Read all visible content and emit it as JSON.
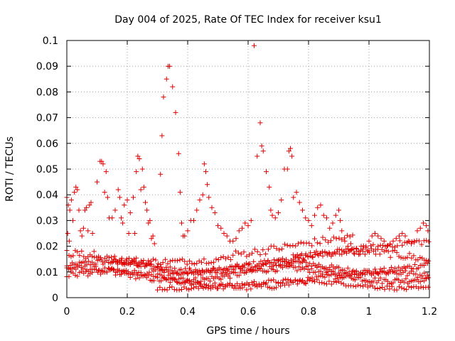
{
  "chart_data": {
    "type": "scatter",
    "title": "Day 004 of 2025, Rate Of TEC Index for receiver ksu1",
    "xlabel": "GPS time / hours",
    "ylabel": "ROTI / TECUs",
    "xlim": [
      0,
      1.2
    ],
    "ylim": [
      0,
      0.1
    ],
    "x_ticks": [
      "0",
      "0.2",
      "0.4",
      "0.6",
      "0.8",
      "1",
      "1.2"
    ],
    "y_ticks": [
      "0",
      "0.01",
      "0.02",
      "0.03",
      "0.04",
      "0.05",
      "0.06",
      "0.07",
      "0.08",
      "0.09",
      "0.1"
    ],
    "grid": true,
    "marker": "plus",
    "color": "#e00000",
    "series": [
      {
        "values": [
          [
            0.0,
            0.039
          ],
          [
            0.005,
            0.036
          ],
          [
            0.01,
            0.034
          ],
          [
            0.015,
            0.038
          ],
          [
            0.003,
            0.025
          ],
          [
            0.008,
            0.022
          ],
          [
            0.02,
            0.03
          ],
          [
            0.025,
            0.041
          ],
          [
            0.03,
            0.043
          ],
          [
            0.035,
            0.042
          ],
          [
            0.04,
            0.034
          ],
          [
            0.045,
            0.026
          ],
          [
            0.05,
            0.024
          ],
          [
            0.055,
            0.027
          ],
          [
            0.06,
            0.034
          ],
          [
            0.065,
            0.035
          ],
          [
            0.07,
            0.026
          ],
          [
            0.075,
            0.036
          ],
          [
            0.08,
            0.037
          ],
          [
            0.085,
            0.025
          ],
          [
            0.09,
            0.018
          ],
          [
            0.1,
            0.045
          ],
          [
            0.11,
            0.053
          ],
          [
            0.115,
            0.053
          ],
          [
            0.12,
            0.052
          ],
          [
            0.125,
            0.041
          ],
          [
            0.13,
            0.049
          ],
          [
            0.135,
            0.039
          ],
          [
            0.14,
            0.031
          ],
          [
            0.15,
            0.031
          ],
          [
            0.16,
            0.034
          ],
          [
            0.17,
            0.042
          ],
          [
            0.175,
            0.039
          ],
          [
            0.18,
            0.031
          ],
          [
            0.185,
            0.029
          ],
          [
            0.19,
            0.036
          ],
          [
            0.2,
            0.038
          ],
          [
            0.205,
            0.025
          ],
          [
            0.21,
            0.033
          ],
          [
            0.22,
            0.039
          ],
          [
            0.225,
            0.025
          ],
          [
            0.23,
            0.049
          ],
          [
            0.235,
            0.055
          ],
          [
            0.24,
            0.054
          ],
          [
            0.245,
            0.042
          ],
          [
            0.25,
            0.05
          ],
          [
            0.255,
            0.043
          ],
          [
            0.26,
            0.037
          ],
          [
            0.265,
            0.034
          ],
          [
            0.27,
            0.029
          ],
          [
            0.275,
            0.03
          ],
          [
            0.28,
            0.023
          ],
          [
            0.285,
            0.024
          ],
          [
            0.29,
            0.021
          ],
          [
            0.31,
            0.048
          ],
          [
            0.315,
            0.063
          ],
          [
            0.32,
            0.078
          ],
          [
            0.33,
            0.085
          ],
          [
            0.335,
            0.09
          ],
          [
            0.34,
            0.09
          ],
          [
            0.35,
            0.082
          ],
          [
            0.36,
            0.072
          ],
          [
            0.37,
            0.056
          ],
          [
            0.375,
            0.041
          ],
          [
            0.38,
            0.029
          ],
          [
            0.385,
            0.024
          ],
          [
            0.39,
            0.024
          ],
          [
            0.4,
            0.026
          ],
          [
            0.41,
            0.03
          ],
          [
            0.42,
            0.03
          ],
          [
            0.43,
            0.034
          ],
          [
            0.44,
            0.038
          ],
          [
            0.45,
            0.04
          ],
          [
            0.455,
            0.052
          ],
          [
            0.46,
            0.049
          ],
          [
            0.465,
            0.044
          ],
          [
            0.47,
            0.039
          ],
          [
            0.48,
            0.035
          ],
          [
            0.49,
            0.033
          ],
          [
            0.5,
            0.028
          ],
          [
            0.51,
            0.027
          ],
          [
            0.52,
            0.025
          ],
          [
            0.53,
            0.024
          ],
          [
            0.54,
            0.022
          ],
          [
            0.55,
            0.022
          ],
          [
            0.56,
            0.023
          ],
          [
            0.57,
            0.026
          ],
          [
            0.58,
            0.027
          ],
          [
            0.59,
            0.029
          ],
          [
            0.6,
            0.028
          ],
          [
            0.61,
            0.03
          ],
          [
            0.62,
            0.098
          ],
          [
            0.63,
            0.055
          ],
          [
            0.64,
            0.068
          ],
          [
            0.645,
            0.059
          ],
          [
            0.65,
            0.057
          ],
          [
            0.66,
            0.049
          ],
          [
            0.67,
            0.043
          ],
          [
            0.675,
            0.034
          ],
          [
            0.68,
            0.032
          ],
          [
            0.69,
            0.031
          ],
          [
            0.7,
            0.033
          ],
          [
            0.71,
            0.038
          ],
          [
            0.72,
            0.05
          ],
          [
            0.73,
            0.05
          ],
          [
            0.735,
            0.057
          ],
          [
            0.74,
            0.058
          ],
          [
            0.745,
            0.055
          ],
          [
            0.75,
            0.039
          ],
          [
            0.76,
            0.041
          ],
          [
            0.77,
            0.037
          ],
          [
            0.78,
            0.034
          ],
          [
            0.79,
            0.031
          ],
          [
            0.8,
            0.03
          ],
          [
            0.81,
            0.028
          ],
          [
            0.82,
            0.032
          ],
          [
            0.83,
            0.035
          ],
          [
            0.84,
            0.036
          ],
          [
            0.85,
            0.032
          ],
          [
            0.86,
            0.031
          ],
          [
            0.87,
            0.027
          ],
          [
            0.88,
            0.029
          ],
          [
            0.89,
            0.032
          ],
          [
            0.9,
            0.034
          ],
          [
            0.905,
            0.03
          ],
          [
            0.91,
            0.026
          ],
          [
            0.92,
            0.022
          ],
          [
            0.93,
            0.02
          ],
          [
            0.94,
            0.021
          ],
          [
            0.95,
            0.019
          ],
          [
            0.96,
            0.018
          ],
          [
            0.97,
            0.017
          ],
          [
            0.98,
            0.018
          ],
          [
            0.99,
            0.02
          ],
          [
            1.0,
            0.022
          ],
          [
            1.01,
            0.024
          ],
          [
            1.02,
            0.025
          ],
          [
            1.03,
            0.024
          ],
          [
            1.04,
            0.023
          ],
          [
            1.05,
            0.022
          ],
          [
            1.06,
            0.02
          ],
          [
            1.07,
            0.021
          ],
          [
            1.08,
            0.022
          ],
          [
            1.09,
            0.023
          ],
          [
            1.1,
            0.024
          ],
          [
            1.11,
            0.025
          ],
          [
            1.12,
            0.024
          ],
          [
            1.13,
            0.022
          ],
          [
            1.14,
            0.021
          ],
          [
            1.15,
            0.022
          ],
          [
            1.16,
            0.026
          ],
          [
            1.17,
            0.027
          ],
          [
            1.18,
            0.029
          ],
          [
            1.19,
            0.028
          ],
          [
            1.195,
            0.026
          ]
        ]
      }
    ],
    "band_curves": [
      {
        "base": 0.012,
        "amp": 0.002,
        "freq": 11,
        "phase": 0.0,
        "jit": 0.0012,
        "step": 0.006,
        "x0": 0.0,
        "x1": 1.2
      },
      {
        "base": 0.009,
        "amp": 0.0025,
        "freq": 9,
        "phase": 1.3,
        "jit": 0.0012,
        "step": 0.006,
        "x0": 0.0,
        "x1": 1.2
      },
      {
        "base": 0.014,
        "amp": 0.004,
        "freq": 6,
        "phase": 2.1,
        "jit": 0.0015,
        "step": 0.007,
        "x0": 0.0,
        "x1": 1.2
      },
      {
        "base": 0.007,
        "amp": 0.003,
        "freq": 7,
        "phase": 0.6,
        "jit": 0.0012,
        "step": 0.007,
        "x0": 0.0,
        "x1": 1.2
      },
      {
        "base": 0.017,
        "amp": 0.003,
        "freq": 5,
        "phase": 3.0,
        "jit": 0.0012,
        "step": 0.008,
        "x0": 0.15,
        "x1": 0.55
      },
      {
        "base": 0.005,
        "amp": 0.0015,
        "freq": 8,
        "phase": 1.8,
        "jit": 0.0008,
        "step": 0.008,
        "x0": 0.3,
        "x1": 1.2
      },
      {
        "base": 0.019,
        "amp": 0.003,
        "freq": 6,
        "phase": 0.4,
        "jit": 0.0012,
        "step": 0.008,
        "x0": 0.75,
        "x1": 1.2
      },
      {
        "base": 0.02,
        "amp": 0.004,
        "freq": 5,
        "phase": 2.6,
        "jit": 0.0015,
        "step": 0.009,
        "x0": 0.55,
        "x1": 0.95
      }
    ]
  }
}
